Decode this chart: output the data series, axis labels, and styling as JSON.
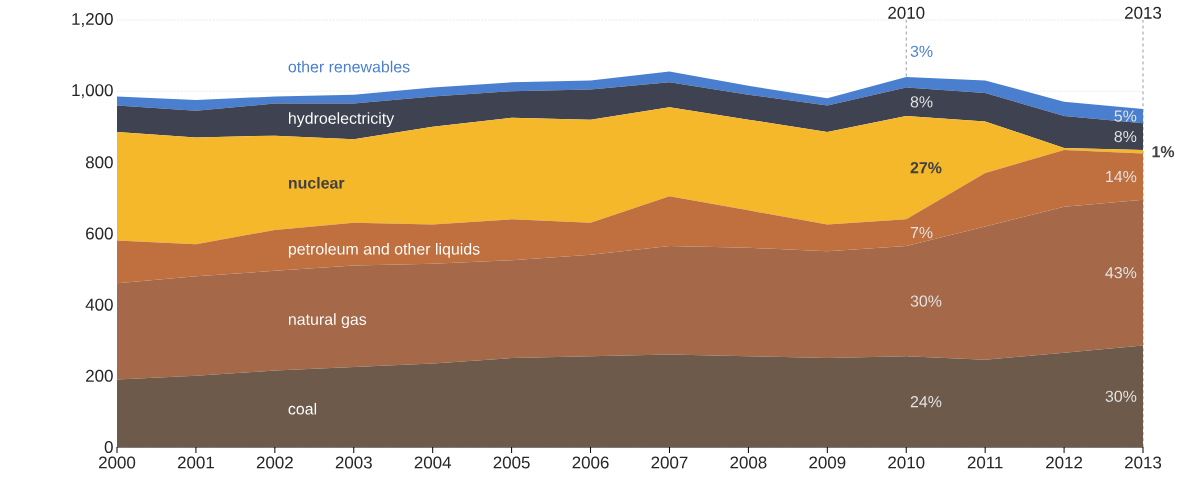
{
  "chart_data": {
    "type": "area",
    "stacked": true,
    "x": [
      2000,
      2001,
      2002,
      2003,
      2004,
      2005,
      2006,
      2007,
      2008,
      2009,
      2010,
      2011,
      2012,
      2013
    ],
    "series": [
      {
        "name": "coal",
        "color": "#6e5a4a",
        "values": [
          190,
          200,
          215,
          225,
          235,
          250,
          255,
          260,
          255,
          250,
          255,
          245,
          265,
          285
        ]
      },
      {
        "name": "natural gas",
        "color": "#a5694a",
        "values": [
          270,
          280,
          280,
          285,
          280,
          275,
          285,
          305,
          305,
          300,
          310,
          375,
          410,
          410
        ]
      },
      {
        "name": "petroleum and other liquids",
        "color": "#c0703f",
        "values": [
          120,
          90,
          115,
          120,
          110,
          115,
          90,
          140,
          105,
          75,
          75,
          150,
          160,
          130
        ]
      },
      {
        "name": "nuclear",
        "color": "#f5b82a",
        "values": [
          305,
          300,
          265,
          235,
          275,
          285,
          290,
          250,
          255,
          260,
          290,
          145,
          5,
          10
        ]
      },
      {
        "name": "hydroelectricity",
        "color": "#3f4250",
        "values": [
          75,
          75,
          90,
          100,
          85,
          75,
          85,
          70,
          70,
          75,
          80,
          80,
          90,
          75
        ]
      },
      {
        "name": "other renewables",
        "color": "#4a7fd0",
        "values": [
          25,
          30,
          20,
          25,
          25,
          25,
          25,
          30,
          25,
          20,
          30,
          35,
          40,
          40
        ]
      }
    ],
    "xlim": [
      2000,
      2013
    ],
    "xticks": [
      2000,
      2001,
      2002,
      2003,
      2004,
      2005,
      2006,
      2007,
      2008,
      2009,
      2010,
      2011,
      2012,
      2013
    ],
    "ylim": [
      0,
      1200
    ],
    "yticks": [
      0,
      200,
      400,
      600,
      800,
      {
        "value": 1000,
        "label": "1,000"
      },
      {
        "value": 1200,
        "label": "1,200"
      }
    ],
    "grid": "y",
    "ref_lines": [
      {
        "axis": "x",
        "value": 2010,
        "label": "2010",
        "line_style": "dashed",
        "color": "#9a9a9a"
      },
      {
        "axis": "x",
        "value": 2013,
        "label": "2013",
        "line_style": "dashed",
        "color": "#9a9a9a"
      }
    ],
    "annotations": [
      "3%",
      "8%",
      "27%",
      "7%",
      "30%",
      "24%",
      "5%",
      "8%",
      "1%",
      "14%",
      "43%",
      "30%"
    ]
  }
}
